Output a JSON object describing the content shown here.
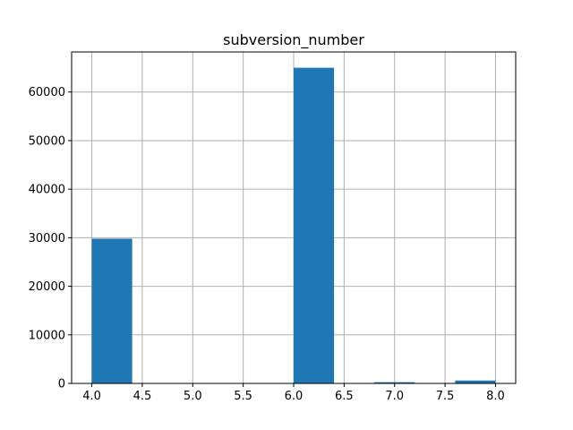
{
  "chart_data": {
    "type": "histogram",
    "title": "subversion_number",
    "xlabel": "",
    "ylabel": "",
    "bins": [
      {
        "x0": 4.0,
        "x1": 4.4,
        "count": 29800
      },
      {
        "x0": 4.4,
        "x1": 4.8,
        "count": 0
      },
      {
        "x0": 4.8,
        "x1": 5.2,
        "count": 0
      },
      {
        "x0": 5.2,
        "x1": 5.6,
        "count": 0
      },
      {
        "x0": 5.6,
        "x1": 6.0,
        "count": 0
      },
      {
        "x0": 6.0,
        "x1": 6.4,
        "count": 65000
      },
      {
        "x0": 6.4,
        "x1": 6.8,
        "count": 0
      },
      {
        "x0": 6.8,
        "x1": 7.2,
        "count": 250
      },
      {
        "x0": 7.2,
        "x1": 7.6,
        "count": 0
      },
      {
        "x0": 7.6,
        "x1": 8.0,
        "count": 600
      }
    ],
    "xlim": [
      3.8,
      8.2
    ],
    "ylim": [
      0,
      68250
    ],
    "xticks": [
      "4.0",
      "4.5",
      "5.0",
      "5.5",
      "6.0",
      "6.5",
      "7.0",
      "7.5",
      "8.0"
    ],
    "xtick_values": [
      4.0,
      4.5,
      5.0,
      5.5,
      6.0,
      6.5,
      7.0,
      7.5,
      8.0
    ],
    "yticks": [
      "0",
      "10000",
      "20000",
      "30000",
      "40000",
      "50000",
      "60000"
    ],
    "ytick_values": [
      0,
      10000,
      20000,
      30000,
      40000,
      50000,
      60000
    ],
    "grid": true,
    "bar_color": "#1f77b4",
    "grid_color": "#b0b0b0"
  }
}
